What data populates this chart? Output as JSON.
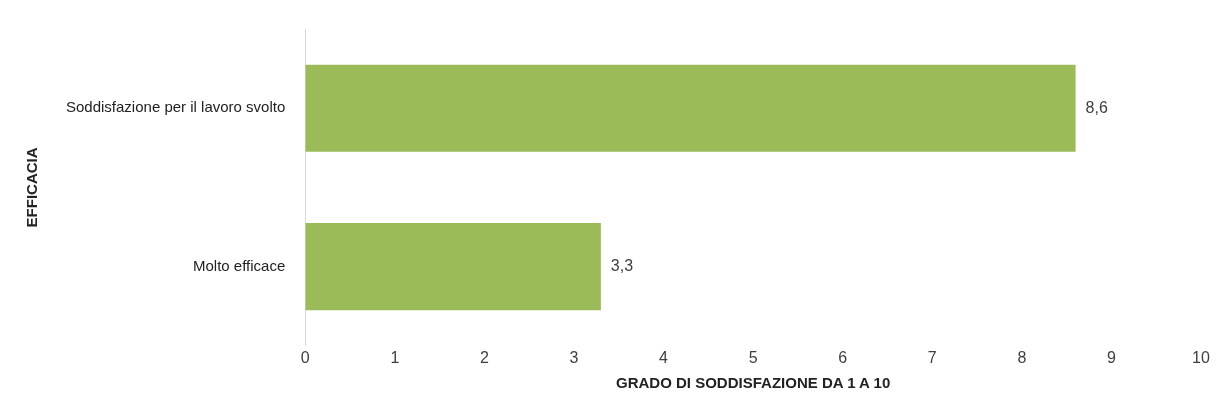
{
  "chart_data": {
    "type": "bar",
    "orientation": "horizontal",
    "xlabel": "GRADO DI SODDISFAZIONE DA 1 A 10",
    "ylabel": "EFFICACIA",
    "categories": [
      "Soddisfazione per il lavoro svolto",
      "Molto efficace"
    ],
    "values": [
      8.6,
      3.3
    ],
    "color": "#9bbb59",
    "value_labels": [
      "8,6",
      "3,3"
    ],
    "xlim": [
      0,
      10
    ],
    "xticks": [
      0,
      1,
      2,
      3,
      4,
      5,
      6,
      7,
      8,
      9,
      10
    ],
    "grid": false,
    "legend": false
  }
}
